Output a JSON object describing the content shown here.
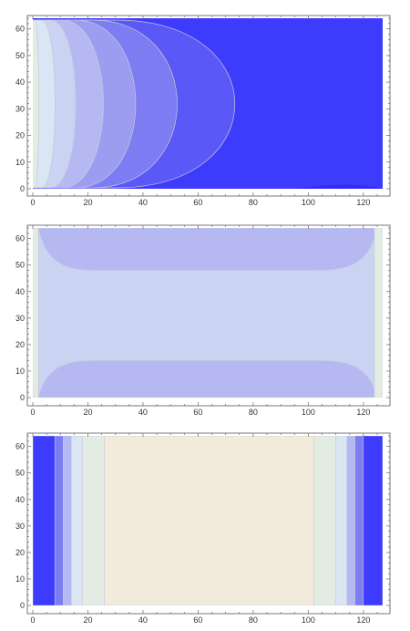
{
  "palette": {
    "deep": "#3d3bfc",
    "c2": "#5a58f6",
    "c3": "#7d7cf2",
    "c4": "#9c9cf0",
    "c5": "#b6b9f1",
    "c6": "#cbd3f2",
    "c7": "#d9e6f3",
    "pale_green": "#e3ece3",
    "cream": "#f2ebdc",
    "contour_line": "#c8c8d8",
    "frame": "#777777"
  },
  "chart_data": [
    {
      "type": "contour",
      "xlim": [
        0,
        127
      ],
      "ylim": [
        0,
        64
      ],
      "x_ticks": [
        0,
        20,
        40,
        60,
        80,
        100,
        120
      ],
      "y_ticks": [
        0,
        10,
        20,
        30,
        40,
        50,
        60
      ],
      "grid": false,
      "description_levels": "colours step from pale at the left edge (x≈0) to deep blue beyond x≈87",
      "levels": [
        {
          "color": "pale_green",
          "x_extent": 2
        },
        {
          "color": "c7",
          "x_extent": 9
        },
        {
          "color": "c6",
          "x_extent": 18
        },
        {
          "color": "c5",
          "x_extent": 30
        },
        {
          "color": "c4",
          "x_extent": 44
        },
        {
          "color": "c3",
          "x_extent": 62
        },
        {
          "color": "c2",
          "x_extent": 87
        }
      ]
    },
    {
      "type": "contour",
      "xlim": [
        0,
        127
      ],
      "ylim": [
        0,
        64
      ],
      "x_ticks": [
        0,
        20,
        40,
        60,
        80,
        100,
        120
      ],
      "y_ticks": [
        0,
        10,
        20,
        30,
        40,
        50,
        60
      ],
      "grid": false,
      "bands": [
        {
          "color": "deep",
          "y_top": 1.5,
          "y_bottom": 62
        },
        {
          "color": "c3",
          "y_top": 3.5,
          "y_bottom": 60
        },
        {
          "color": "c4",
          "y_top": 9,
          "y_bottom": 54
        },
        {
          "color": "c5",
          "y_top": 14,
          "y_bottom": 48
        },
        {
          "color": "c6",
          "y_top": 20,
          "y_bottom": 44
        }
      ],
      "side_strips_x": [
        2,
        124
      ]
    },
    {
      "type": "contour",
      "xlim": [
        0,
        127
      ],
      "ylim": [
        0,
        64
      ],
      "x_ticks": [
        0,
        20,
        40,
        60,
        80,
        100,
        120
      ],
      "y_ticks": [
        0,
        10,
        20,
        30,
        40,
        50,
        60
      ],
      "grid": false,
      "strips": [
        {
          "x0": 0,
          "x1": 8,
          "color": "deep"
        },
        {
          "x0": 8,
          "x1": 11,
          "color": "c3"
        },
        {
          "x0": 11,
          "x1": 14,
          "color": "c5"
        },
        {
          "x0": 14,
          "x1": 18,
          "color": "c7"
        },
        {
          "x0": 18,
          "x1": 26,
          "color": "pale_green"
        },
        {
          "x0": 26,
          "x1": 102,
          "color": "cream"
        },
        {
          "x0": 102,
          "x1": 110,
          "color": "pale_green"
        },
        {
          "x0": 110,
          "x1": 114,
          "color": "c7"
        },
        {
          "x0": 114,
          "x1": 117,
          "color": "c5"
        },
        {
          "x0": 117,
          "x1": 120,
          "color": "c3"
        },
        {
          "x0": 120,
          "x1": 127,
          "color": "deep"
        }
      ]
    }
  ]
}
